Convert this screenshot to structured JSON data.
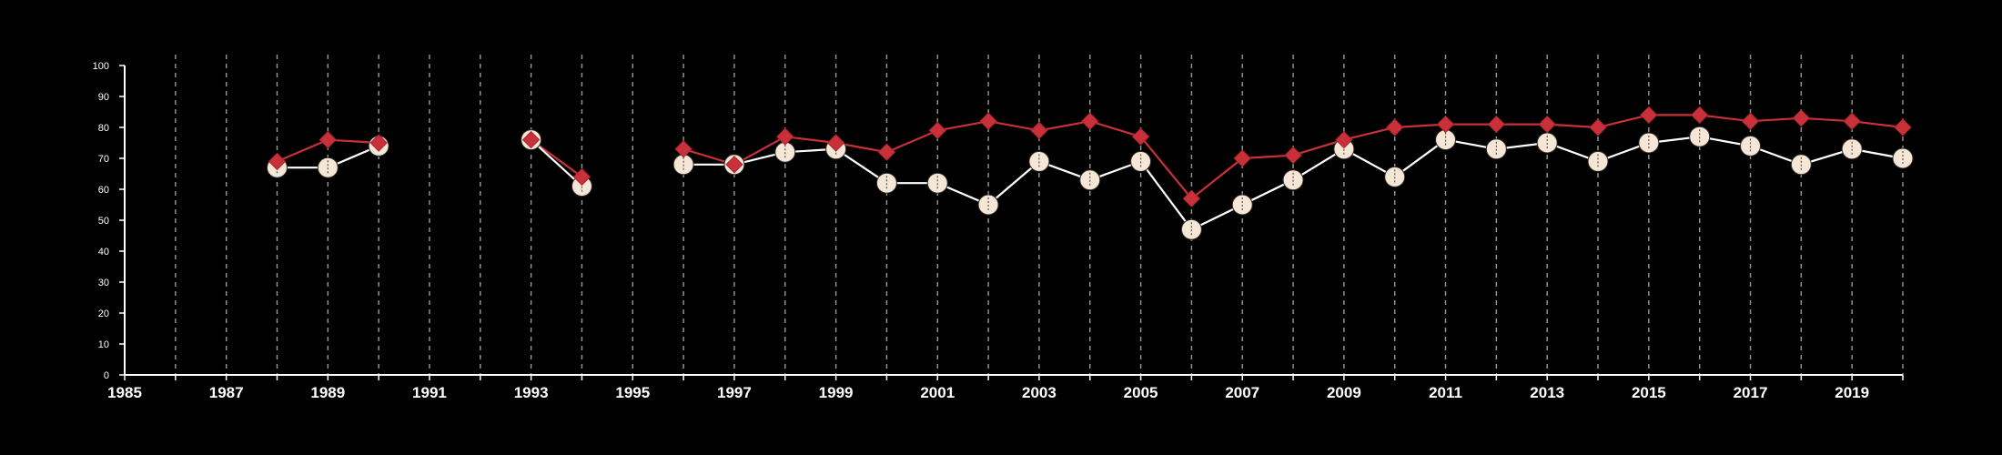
{
  "chart_data": {
    "type": "line",
    "title": "",
    "xlabel": "",
    "ylabel": "",
    "xlim": [
      1985,
      2020
    ],
    "ylim": [
      0,
      100
    ],
    "y_ticks": [
      0,
      10,
      20,
      30,
      40,
      50,
      60,
      70,
      80,
      90,
      100
    ],
    "x_tick_labels": [
      "1985",
      "1987",
      "1989",
      "1991",
      "1993",
      "1995",
      "1997",
      "1999",
      "2001",
      "2003",
      "2005",
      "2007",
      "2009",
      "2011",
      "2013",
      "2015",
      "2017",
      "2019"
    ],
    "vertical_grid": "dashed, every year",
    "legend": "none",
    "colors": {
      "background": "#000000",
      "axis": "#ffffff",
      "grid": "#9a9a9a",
      "series_a": "#c9313a",
      "series_b_line": "#ffffff",
      "series_b_fill": "#f5e6d6"
    },
    "series": [
      {
        "marker": "diamond",
        "color": "#c9313a",
        "x": [
          1988,
          1989,
          1990,
          1993,
          1994,
          1996,
          1997,
          1998,
          1999,
          2000,
          2001,
          2002,
          2003,
          2004,
          2005,
          2006,
          2007,
          2008,
          2009,
          2010,
          2011,
          2012,
          2013,
          2014,
          2015,
          2016,
          2017,
          2018,
          2019,
          2020
        ],
        "values": [
          69,
          76,
          75,
          76,
          64,
          73,
          68,
          77,
          75,
          72,
          79,
          82,
          79,
          82,
          77,
          57,
          70,
          71,
          76,
          80,
          81,
          81,
          81,
          80,
          84,
          84,
          82,
          83,
          82,
          80
        ]
      },
      {
        "marker": "circle",
        "color": "#f5e6d6",
        "x": [
          1988,
          1989,
          1990,
          1993,
          1994,
          1996,
          1997,
          1998,
          1999,
          2000,
          2001,
          2002,
          2003,
          2004,
          2005,
          2006,
          2007,
          2008,
          2009,
          2010,
          2011,
          2012,
          2013,
          2014,
          2015,
          2016,
          2017,
          2018,
          2019,
          2020
        ],
        "values": [
          67,
          67,
          74,
          76,
          61,
          68,
          68,
          72,
          73,
          62,
          62,
          55,
          69,
          63,
          69,
          47,
          55,
          63,
          73,
          64,
          76,
          73,
          75,
          69,
          75,
          77,
          74,
          68,
          73,
          70
        ]
      }
    ]
  }
}
